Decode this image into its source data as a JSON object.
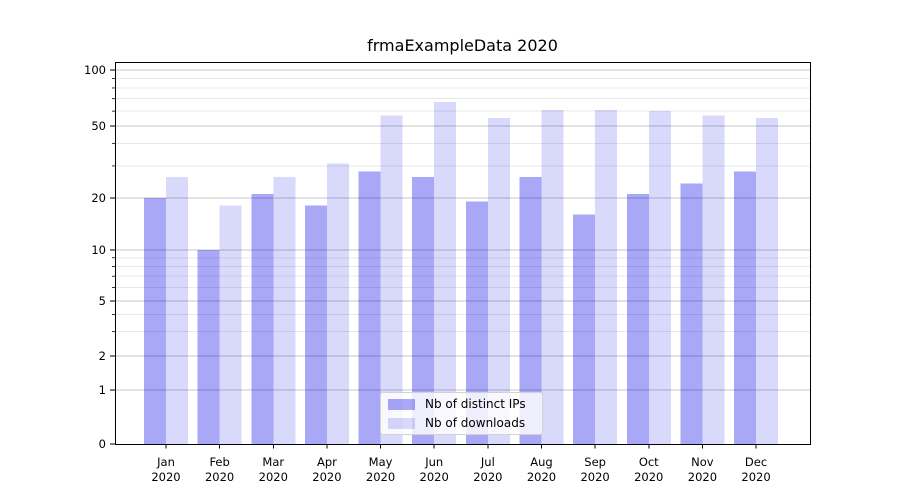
{
  "window": {
    "background": "#ffffff"
  },
  "chart_data": {
    "type": "bar",
    "title": "frmaExampleData 2020",
    "categories": [
      "Jan",
      "Feb",
      "Mar",
      "Apr",
      "May",
      "Jun",
      "Jul",
      "Aug",
      "Sep",
      "Oct",
      "Nov",
      "Dec"
    ],
    "x_sublabel": "2020",
    "series": [
      {
        "name": "Nb of distinct IPs",
        "color": "#a8a8f5",
        "rgba": "rgba(0,0,230,0.34)",
        "values": [
          20,
          10,
          21,
          18,
          28,
          26,
          19,
          26,
          16,
          21,
          24,
          28
        ]
      },
      {
        "name": "Nb of downloads",
        "color": "#d9d9fa",
        "rgba": "rgba(0,0,230,0.15)",
        "values": [
          26,
          18,
          26,
          31,
          57,
          67,
          55,
          61,
          61,
          60,
          57,
          55
        ]
      }
    ],
    "yscale": "symlog",
    "ylim": [
      0,
      111
    ],
    "yticks": [
      0,
      1,
      2,
      5,
      10,
      20,
      50,
      100
    ],
    "yticks_minor": [
      3,
      4,
      6,
      7,
      8,
      9,
      30,
      40,
      60,
      70,
      80,
      90
    ],
    "grid": true,
    "legend_position": "lower center",
    "colors": {
      "grid_major": "#c4c4c4",
      "grid_minor": "#e8e8e8",
      "spine": "#000000"
    }
  }
}
